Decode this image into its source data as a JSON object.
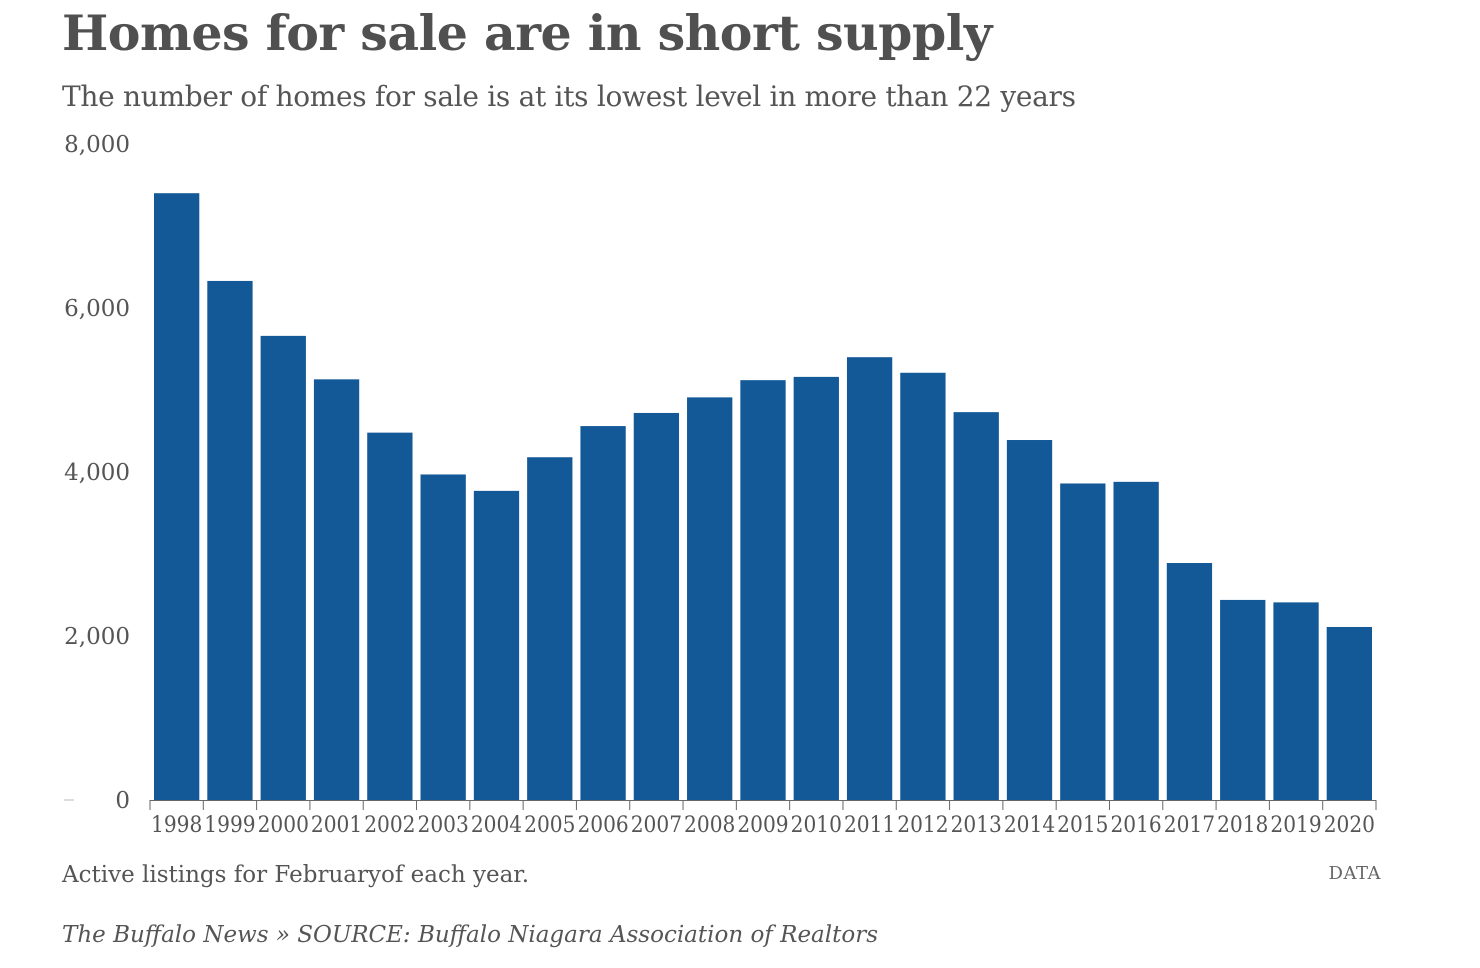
{
  "header": {
    "title": "Homes for sale are in short supply",
    "subtitle": "The number of homes for sale is at its lowest level in more than 22 years"
  },
  "footer": {
    "note": "Active listings for Februaryof each year.",
    "data_link": "DATA",
    "credit": "The Buffalo News » SOURCE: Buffalo Niagara Association of Realtors"
  },
  "colors": {
    "bar": "#135897",
    "axis": "#666666",
    "text": "#555555"
  },
  "chart_data": {
    "type": "bar",
    "categories": [
      "1998",
      "1999",
      "2000",
      "2001",
      "2002",
      "2003",
      "2004",
      "2005",
      "2006",
      "2007",
      "2008",
      "2009",
      "2010",
      "2011",
      "2012",
      "2013",
      "2014",
      "2015",
      "2016",
      "2017",
      "2018",
      "2019",
      "2020"
    ],
    "values": [
      7400,
      6330,
      5660,
      5130,
      4480,
      3970,
      3770,
      4180,
      4560,
      4720,
      4910,
      5120,
      5160,
      5400,
      5210,
      4730,
      4390,
      3860,
      3880,
      2890,
      2440,
      2410,
      2110
    ],
    "ylim": [
      0,
      8000
    ],
    "yticks": [
      0,
      2000,
      4000,
      6000,
      8000
    ],
    "ytick_labels": [
      "0",
      "2,000",
      "4,000",
      "6,000",
      "8,000"
    ],
    "xlabel": "",
    "ylabel": "",
    "grid": false,
    "legend": "none"
  }
}
